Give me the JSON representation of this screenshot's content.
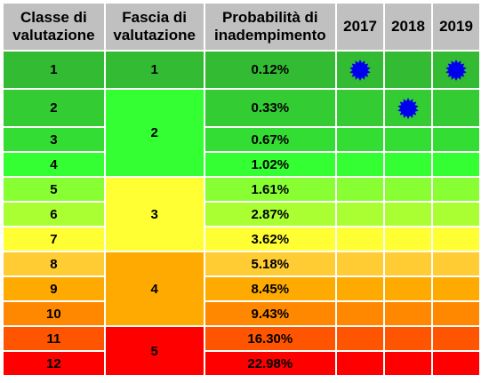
{
  "headers": {
    "classe": "Classe di valutazione",
    "fascia": "Fascia di valutazione",
    "probabilita": "Probabilità di inadempimento",
    "years": [
      "2017",
      "2018",
      "2019"
    ]
  },
  "rows": [
    {
      "classe": "1",
      "prob": "0.12%",
      "color": "#33bb33",
      "stars": [
        true,
        false,
        true
      ]
    },
    {
      "classe": "2",
      "prob": "0.33%",
      "color": "#33cc33",
      "stars": [
        false,
        true,
        false
      ]
    },
    {
      "classe": "3",
      "prob": "0.67%",
      "color": "#33dd33",
      "stars": [
        false,
        false,
        false
      ]
    },
    {
      "classe": "4",
      "prob": "1.02%",
      "color": "#33ff33",
      "stars": [
        false,
        false,
        false
      ]
    },
    {
      "classe": "5",
      "prob": "1.61%",
      "color": "#88ff33",
      "stars": [
        false,
        false,
        false
      ]
    },
    {
      "classe": "6",
      "prob": "2.87%",
      "color": "#aaff33",
      "stars": [
        false,
        false,
        false
      ]
    },
    {
      "classe": "7",
      "prob": "3.62%",
      "color": "#ffff33",
      "stars": [
        false,
        false,
        false
      ]
    },
    {
      "classe": "8",
      "prob": "5.18%",
      "color": "#ffcc33",
      "stars": [
        false,
        false,
        false
      ]
    },
    {
      "classe": "9",
      "prob": "8.45%",
      "color": "#ffaa00",
      "stars": [
        false,
        false,
        false
      ]
    },
    {
      "classe": "10",
      "prob": "9.43%",
      "color": "#ff8800",
      "stars": [
        false,
        false,
        false
      ]
    },
    {
      "classe": "11",
      "prob": "16.30%",
      "color": "#ff5500",
      "stars": [
        false,
        false,
        false
      ]
    },
    {
      "classe": "12",
      "prob": "22.98%",
      "color": "#ff0000",
      "stars": [
        false,
        false,
        false
      ]
    }
  ],
  "fasce": [
    {
      "label": "1",
      "start": 0,
      "span": 1,
      "color": "#33bb33"
    },
    {
      "label": "2",
      "start": 1,
      "span": 3,
      "color": "#33ff33"
    },
    {
      "label": "3",
      "start": 4,
      "span": 3,
      "color": "#ffff33"
    },
    {
      "label": "4",
      "start": 7,
      "span": 3,
      "color": "#ffaa00"
    },
    {
      "label": "5",
      "start": 10,
      "span": 2,
      "color": "#ff0000"
    }
  ],
  "marker": {
    "icon": "blue-starburst-icon",
    "color": "#0000ee"
  }
}
